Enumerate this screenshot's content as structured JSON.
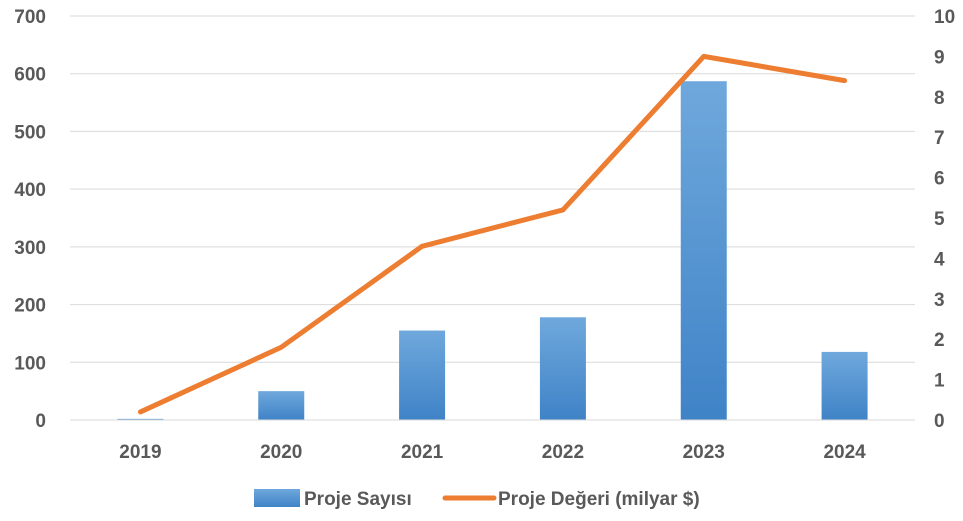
{
  "chart_data": {
    "type": "bar",
    "title": "",
    "xlabel": "",
    "ylabel": "",
    "categories": [
      "2019",
      "2020",
      "2021",
      "2022",
      "2023",
      "2024"
    ],
    "series": [
      {
        "name": "Proje Sayısı",
        "type": "bar",
        "axis": "left",
        "color": "#5B9BD5",
        "values": [
          2,
          50,
          155,
          178,
          587,
          118
        ]
      },
      {
        "name": "Proje Değeri (milyar $)",
        "type": "line",
        "axis": "right",
        "color": "#ED7D31",
        "values": [
          0.2,
          1.8,
          4.3,
          5.2,
          9.0,
          8.4
        ]
      }
    ],
    "ylim": [
      0,
      700
    ],
    "yticks": [
      "0",
      "100",
      "200",
      "300",
      "400",
      "500",
      "600",
      "700"
    ],
    "y2lim": [
      0,
      10
    ],
    "y2ticks": [
      "0",
      "1",
      "2",
      "3",
      "4",
      "5",
      "6",
      "7",
      "8",
      "9",
      "10"
    ],
    "grid": true,
    "legend_position": "bottom"
  }
}
